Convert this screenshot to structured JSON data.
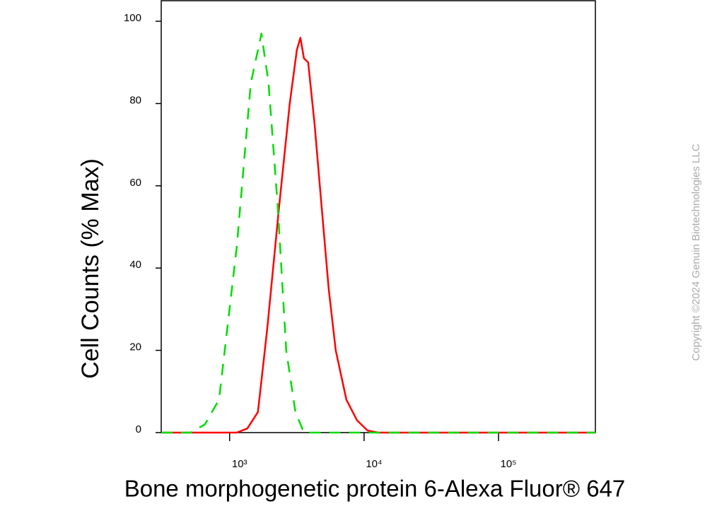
{
  "chart_data": {
    "type": "line",
    "xlabel": "Bone morphogenetic protein 6-Alexa Fluor® 647",
    "ylabel": "Cell Counts (% Max)",
    "copyright": "Copyright ©2024 Genuin Biotechnologies LLC",
    "xscale": "log",
    "xlim": [
      310,
      525000
    ],
    "ylim": [
      0,
      105
    ],
    "xticks": [
      {
        "value": 1000,
        "label": "10³"
      },
      {
        "value": 10000,
        "label": "10⁴"
      },
      {
        "value": 100000,
        "label": "10⁵"
      }
    ],
    "yticks": [
      0,
      20,
      40,
      60,
      80,
      100
    ],
    "grid": false,
    "series": [
      {
        "color": "#ff0000",
        "dashed": false,
        "x": [
          310,
          1129,
          1354,
          1624,
          1901,
          2335,
          2800,
          3162,
          3360,
          3570,
          3838,
          4285,
          4831,
          5455,
          6155,
          7386,
          8855,
          10620,
          12740,
          525000
        ],
        "values": [
          0,
          0,
          1,
          5,
          25,
          55,
          80,
          93,
          96,
          91,
          90,
          75,
          55,
          35,
          20,
          8,
          3,
          0.5,
          0,
          0
        ]
      },
      {
        "color": "#00dd00",
        "dashed": true,
        "x": [
          310,
          514,
          655,
          834,
          1129,
          1438,
          1725,
          1947,
          2280,
          2636,
          3085,
          3570,
          6540,
          525000
        ],
        "values": [
          0,
          0,
          2,
          8,
          45,
          85,
          97,
          85,
          55,
          20,
          5,
          0,
          0,
          0
        ]
      }
    ]
  }
}
